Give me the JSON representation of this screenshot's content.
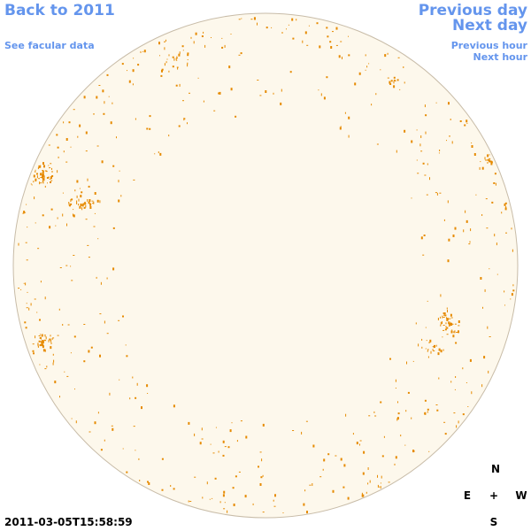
{
  "nav": {
    "back_label": "Back to 2011",
    "facular_label": "See facular data",
    "prev_day_label": "Previous day",
    "next_day_label": "Next day",
    "prev_hour_label": "Previous hour",
    "next_hour_label": "Next hour"
  },
  "compass": {
    "north": "N",
    "east": "E",
    "center": "+",
    "west": "W",
    "south": "S"
  },
  "timestamp": "2011-03-05T15:58:59",
  "colors": {
    "link": "#6495ed",
    "disk_fill": "#fdf8ec",
    "disk_stroke": "#c8bca8",
    "facula": "#e68a00"
  }
}
